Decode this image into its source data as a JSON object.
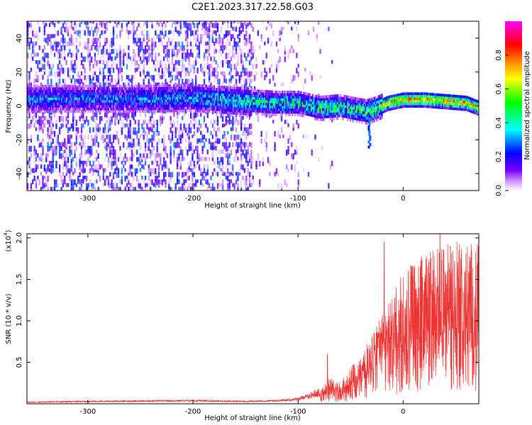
{
  "title": "C2E1.2023.317.22.58.G03",
  "chart_data": [
    {
      "type": "heatmap",
      "xlabel": "Height of straight line (km)",
      "ylabel": "Frequency (Hz)",
      "xlim": [
        -358,
        72
      ],
      "ylim": [
        -50,
        50
      ],
      "xticks": [
        -300,
        -200,
        -100,
        0
      ],
      "yticks": [
        -40,
        -20,
        0,
        20,
        40
      ],
      "colorbar": {
        "label": "Normalized spectral amplitude",
        "range": [
          0,
          1
        ],
        "ticks": [
          0.0,
          0.2,
          0.4,
          0.6,
          0.8
        ],
        "tick_labels": [
          "0.0",
          "0.2",
          "0.4",
          "0.6",
          "0.8"
        ],
        "colormap": [
          "#ffffff",
          "#cc88ff",
          "#7700ff",
          "#0000ff",
          "#00ffff",
          "#00ff00",
          "#ffff00",
          "#ff8800",
          "#ff0000",
          "#ff00ff"
        ]
      },
      "ridge": {
        "x": [
          -358,
          -300,
          -250,
          -200,
          -150,
          -120,
          -100,
          -80,
          -60,
          -45,
          -35,
          -25,
          -15,
          0,
          20,
          40,
          60,
          72
        ],
        "frequency": [
          3.5,
          3.5,
          3.5,
          4,
          2,
          1,
          1,
          -2,
          -1,
          -3,
          -4,
          -2,
          1,
          3,
          3,
          2,
          1,
          -2
        ],
        "amplitude": [
          0.35,
          0.35,
          0.37,
          0.4,
          0.5,
          0.55,
          0.55,
          0.6,
          0.6,
          0.6,
          0.62,
          0.7,
          0.85,
          0.88,
          0.88,
          0.86,
          0.85,
          0.8
        ]
      }
    },
    {
      "type": "line",
      "xlabel": "Height of straight line (km)",
      "ylabel": "SNR (10 * v/v)",
      "y_multiplier": "(x10",
      "y_multiplier_exp": "4",
      "xlim": [
        -358,
        72
      ],
      "ylim": [
        0,
        2.05
      ],
      "xticks": [
        -300,
        -200,
        -100,
        0
      ],
      "yticks": [
        0.5,
        1.0,
        1.5,
        2.0
      ],
      "ytick_labels": [
        "0.5",
        "1.0",
        "1.5",
        "2.0"
      ],
      "color": "#ee3333",
      "envelope": {
        "x": [
          -358,
          -300,
          -200,
          -150,
          -120,
          -100,
          -90,
          -80,
          -70,
          -60,
          -50,
          -40,
          -30,
          -20,
          -10,
          0,
          10,
          20,
          30,
          40,
          50,
          60,
          72
        ],
        "y": [
          0.02,
          0.03,
          0.04,
          0.03,
          0.04,
          0.06,
          0.1,
          0.15,
          0.25,
          0.2,
          0.35,
          0.45,
          0.65,
          0.85,
          1.05,
          1.25,
          1.35,
          1.45,
          1.5,
          1.5,
          1.55,
          1.52,
          1.55
        ]
      },
      "peaks": [
        {
          "x": -72,
          "y": 0.6
        },
        {
          "x": -18,
          "y": 1.95
        },
        {
          "x": 5,
          "y": 1.6
        },
        {
          "x": 35,
          "y": 2.05
        },
        {
          "x": 45,
          "y": 1.9
        }
      ]
    }
  ]
}
